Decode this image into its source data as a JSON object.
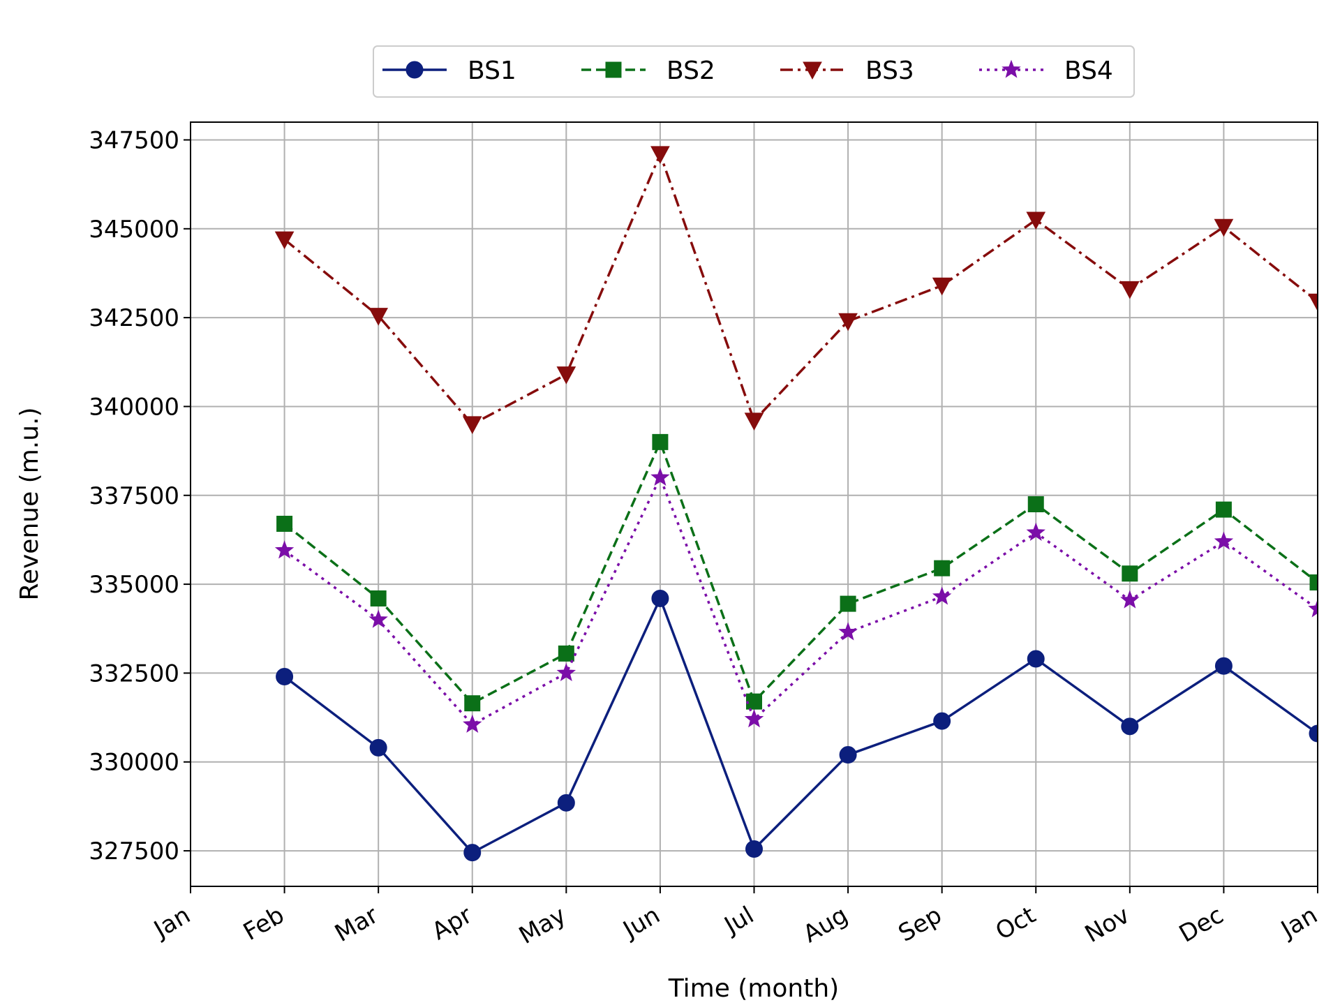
{
  "chart_data": {
    "type": "line",
    "title": "",
    "xlabel": "Time (month)",
    "ylabel": "Revenue (m.u.)",
    "x_ticks": [
      "Jan",
      "Feb",
      "Mar",
      "Apr",
      "May",
      "Jun",
      "Jul",
      "Aug",
      "Sep",
      "Oct",
      "Nov",
      "Dec",
      "Jan"
    ],
    "y_ticks": [
      327500,
      330000,
      332500,
      335000,
      337500,
      340000,
      342500,
      345000,
      347500
    ],
    "ylim": [
      326500,
      348000
    ],
    "grid": true,
    "legend_position": "top-center outside",
    "categories": [
      "Feb",
      "Mar",
      "Apr",
      "May",
      "Jun",
      "Jul",
      "Aug",
      "Sep",
      "Oct",
      "Nov",
      "Dec",
      "Jan"
    ],
    "series": [
      {
        "name": "BS1",
        "color": "#0c1f7d",
        "linestyle": "solid",
        "marker": "circle",
        "values": [
          332400,
          330400,
          327450,
          328850,
          334600,
          327550,
          330200,
          331150,
          332900,
          331000,
          332700,
          330800
        ]
      },
      {
        "name": "BS2",
        "color": "#0b7018",
        "linestyle": "dashed",
        "marker": "square",
        "values": [
          336700,
          334600,
          331650,
          333050,
          339000,
          331700,
          334450,
          335450,
          337250,
          335300,
          337100,
          335050
        ]
      },
      {
        "name": "BS3",
        "color": "#860c0c",
        "linestyle": "dashdot",
        "marker": "triangle-down",
        "values": [
          344700,
          342550,
          339500,
          340900,
          347100,
          339600,
          342400,
          343400,
          345250,
          343300,
          345050,
          342950
        ]
      },
      {
        "name": "BS4",
        "color": "#7b0ea8",
        "linestyle": "dotted",
        "marker": "star",
        "values": [
          335950,
          334000,
          331050,
          332500,
          338000,
          331200,
          333650,
          334650,
          336450,
          334550,
          336200,
          334300
        ]
      }
    ]
  }
}
